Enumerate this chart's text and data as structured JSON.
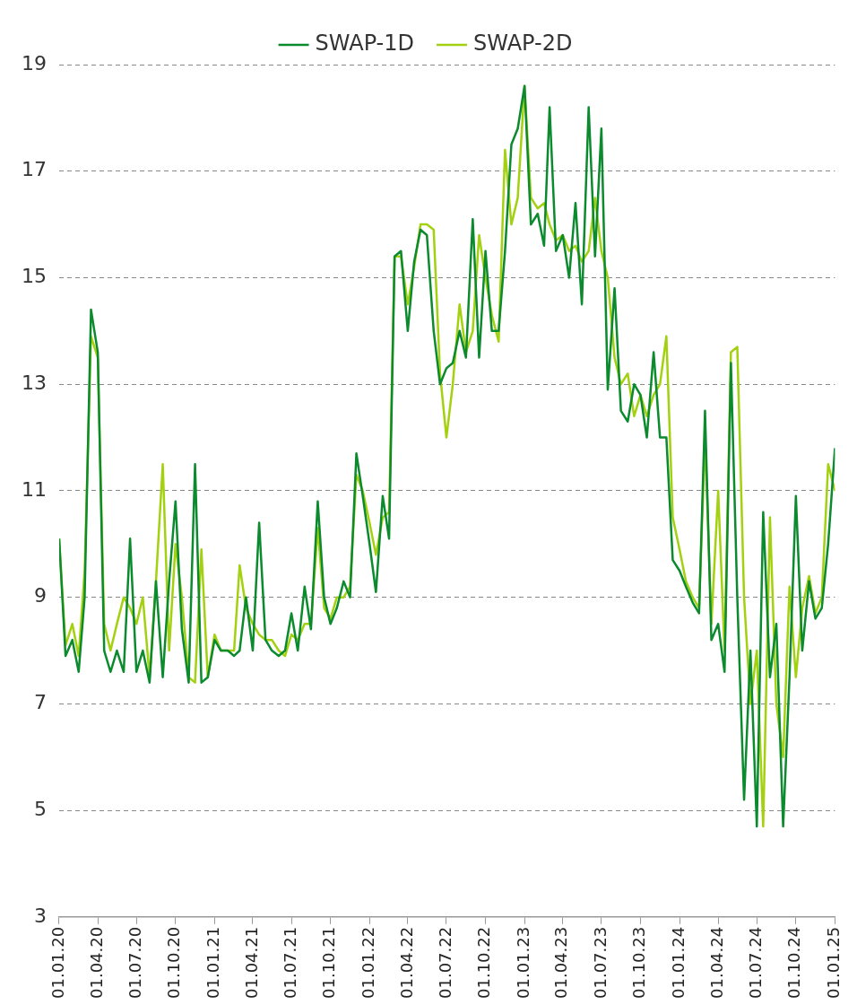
{
  "chart_data": {
    "type": "line",
    "x": [
      "2020-01-01",
      "2020-01-16",
      "2020-02-01",
      "2020-02-16",
      "2020-03-01",
      "2020-03-16",
      "2020-04-01",
      "2020-04-16",
      "2020-05-01",
      "2020-05-16",
      "2020-06-01",
      "2020-06-16",
      "2020-07-01",
      "2020-07-16",
      "2020-08-01",
      "2020-08-16",
      "2020-09-01",
      "2020-09-16",
      "2020-10-01",
      "2020-10-16",
      "2020-11-01",
      "2020-11-16",
      "2020-12-01",
      "2020-12-16",
      "2021-01-01",
      "2021-01-16",
      "2021-02-01",
      "2021-02-16",
      "2021-03-01",
      "2021-03-16",
      "2021-04-01",
      "2021-04-16",
      "2021-05-01",
      "2021-05-16",
      "2021-06-01",
      "2021-06-16",
      "2021-07-01",
      "2021-07-16",
      "2021-08-01",
      "2021-08-16",
      "2021-09-01",
      "2021-09-16",
      "2021-10-01",
      "2021-10-16",
      "2021-11-01",
      "2021-11-16",
      "2021-12-01",
      "2021-12-16",
      "2022-01-01",
      "2022-01-16",
      "2022-02-01",
      "2022-02-16",
      "2022-03-01",
      "2022-03-16",
      "2022-04-01",
      "2022-04-16",
      "2022-05-01",
      "2022-05-16",
      "2022-06-01",
      "2022-06-16",
      "2022-07-01",
      "2022-07-16",
      "2022-08-01",
      "2022-08-16",
      "2022-09-01",
      "2022-09-16",
      "2022-10-01",
      "2022-10-16",
      "2022-11-01",
      "2022-11-16",
      "2022-12-01",
      "2022-12-16",
      "2023-01-01",
      "2023-01-16",
      "2023-02-01",
      "2023-02-16",
      "2023-03-01",
      "2023-03-16",
      "2023-04-01",
      "2023-04-16",
      "2023-05-01",
      "2023-05-16",
      "2023-06-01",
      "2023-06-16",
      "2023-07-01",
      "2023-07-16",
      "2023-08-01",
      "2023-08-16",
      "2023-09-01",
      "2023-09-16",
      "2023-10-01",
      "2023-10-16",
      "2023-11-01",
      "2023-11-16",
      "2023-12-01",
      "2023-12-16",
      "2024-01-01",
      "2024-01-16",
      "2024-02-01",
      "2024-02-16",
      "2024-03-01",
      "2024-03-16",
      "2024-04-01",
      "2024-04-16",
      "2024-05-01",
      "2024-05-16",
      "2024-06-01",
      "2024-06-16",
      "2024-07-01",
      "2024-07-16",
      "2024-08-01",
      "2024-08-16",
      "2024-09-01",
      "2024-09-16",
      "2024-10-01",
      "2024-10-16",
      "2024-11-01",
      "2024-11-16",
      "2024-12-01",
      "2024-12-16",
      "2025-01-01"
    ],
    "series": [
      {
        "name": "SWAP-1D",
        "color": "#0b8a2e",
        "values": [
          10.1,
          7.9,
          8.2,
          7.6,
          9.0,
          14.4,
          13.6,
          8.0,
          7.6,
          8.0,
          7.6,
          10.1,
          7.6,
          8.0,
          7.4,
          9.3,
          7.5,
          9.3,
          10.8,
          8.4,
          7.4,
          11.5,
          7.4,
          7.5,
          8.2,
          8.0,
          8.0,
          7.9,
          8.0,
          9.0,
          8.0,
          10.4,
          8.2,
          8.0,
          7.9,
          8.0,
          8.7,
          8.0,
          9.2,
          8.4,
          10.8,
          9.0,
          8.5,
          8.8,
          9.3,
          9.0,
          11.7,
          10.9,
          10.0,
          9.1,
          10.9,
          10.1,
          15.4,
          15.5,
          14.0,
          15.3,
          15.9,
          15.8,
          14.0,
          13.0,
          13.3,
          13.4,
          14.0,
          13.5,
          16.1,
          13.5,
          15.5,
          14.0,
          14.0,
          15.5,
          17.5,
          17.8,
          18.6,
          16.0,
          16.2,
          15.6,
          18.2,
          15.5,
          15.8,
          15.0,
          16.4,
          14.5,
          18.2,
          15.4,
          17.8,
          12.9,
          14.8,
          12.5,
          12.3,
          13.0,
          12.8,
          12.0,
          13.6,
          12.0,
          12.0,
          9.7,
          9.5,
          9.2,
          8.9,
          8.7,
          12.5,
          8.2,
          8.5,
          7.6,
          13.4,
          9.0,
          5.2,
          8.0,
          4.7,
          10.6,
          7.5,
          8.5,
          4.7,
          7.5,
          10.9,
          8.0,
          9.3,
          8.6,
          8.8,
          10.0,
          11.8
        ]
      },
      {
        "name": "SWAP-2D",
        "color": "#a3d110",
        "values": [
          10.1,
          8.1,
          8.5,
          7.9,
          9.5,
          13.9,
          13.5,
          8.5,
          8.0,
          8.5,
          9.0,
          8.8,
          8.5,
          9.0,
          7.5,
          9.3,
          11.5,
          8.0,
          10.0,
          9.0,
          7.5,
          7.4,
          9.9,
          7.5,
          8.3,
          8.0,
          8.0,
          8.0,
          9.6,
          8.8,
          8.5,
          8.3,
          8.2,
          8.2,
          8.0,
          7.9,
          8.3,
          8.2,
          8.5,
          8.5,
          10.3,
          8.8,
          8.6,
          9.0,
          9.0,
          9.2,
          11.3,
          11.0,
          10.4,
          9.8,
          10.5,
          10.6,
          15.4,
          15.4,
          14.5,
          15.2,
          16.0,
          16.0,
          15.9,
          13.2,
          12.0,
          13.0,
          14.5,
          13.6,
          14.0,
          15.8,
          15.0,
          14.3,
          13.8,
          17.4,
          16.0,
          16.5,
          18.6,
          16.5,
          16.3,
          16.4,
          16.0,
          15.7,
          15.8,
          15.5,
          15.6,
          15.3,
          15.5,
          16.5,
          15.5,
          15.0,
          13.5,
          13.0,
          13.2,
          12.4,
          12.8,
          12.4,
          12.8,
          13.0,
          13.9,
          10.5,
          9.9,
          9.3,
          9.0,
          8.8,
          12.0,
          8.5,
          11.0,
          8.0,
          13.6,
          13.7,
          9.0,
          7.0,
          8.0,
          4.7,
          10.5,
          7.0,
          6.0,
          9.2,
          7.5,
          8.8,
          9.4,
          8.7,
          9.0,
          11.5,
          11.0
        ]
      }
    ],
    "xlim": [
      "2020-01-01",
      "2025-01-01"
    ],
    "xticks": [
      {
        "value": "2020-01-01",
        "label": "01.01.20"
      },
      {
        "value": "2020-04-01",
        "label": "01.04.20"
      },
      {
        "value": "2020-07-01",
        "label": "01.07.20"
      },
      {
        "value": "2020-10-01",
        "label": "01.10.20"
      },
      {
        "value": "2021-01-01",
        "label": "01.01.21"
      },
      {
        "value": "2021-04-01",
        "label": "01.04.21"
      },
      {
        "value": "2021-07-01",
        "label": "01.07.21"
      },
      {
        "value": "2021-10-01",
        "label": "01.10.21"
      },
      {
        "value": "2022-01-01",
        "label": "01.01.22"
      },
      {
        "value": "2022-04-01",
        "label": "01.04.22"
      },
      {
        "value": "2022-07-01",
        "label": "01.07.22"
      },
      {
        "value": "2022-10-01",
        "label": "01.10.22"
      },
      {
        "value": "2023-01-01",
        "label": "01.01.23"
      },
      {
        "value": "2023-04-01",
        "label": "01.04.23"
      },
      {
        "value": "2023-07-01",
        "label": "01.07.23"
      },
      {
        "value": "2023-10-01",
        "label": "01.10.23"
      },
      {
        "value": "2024-01-01",
        "label": "01.01.24"
      },
      {
        "value": "2024-04-01",
        "label": "01.04.24"
      },
      {
        "value": "2024-07-01",
        "label": "01.07.24"
      },
      {
        "value": "2024-10-01",
        "label": "01.10.24"
      },
      {
        "value": "2025-01-01",
        "label": "01.01.25"
      }
    ],
    "ylim": [
      3,
      19
    ],
    "yticks": [
      3,
      5,
      7,
      9,
      11,
      13,
      15,
      17,
      19
    ],
    "grid": "y",
    "legend": "top",
    "marker": "none",
    "line_style": "solid"
  }
}
